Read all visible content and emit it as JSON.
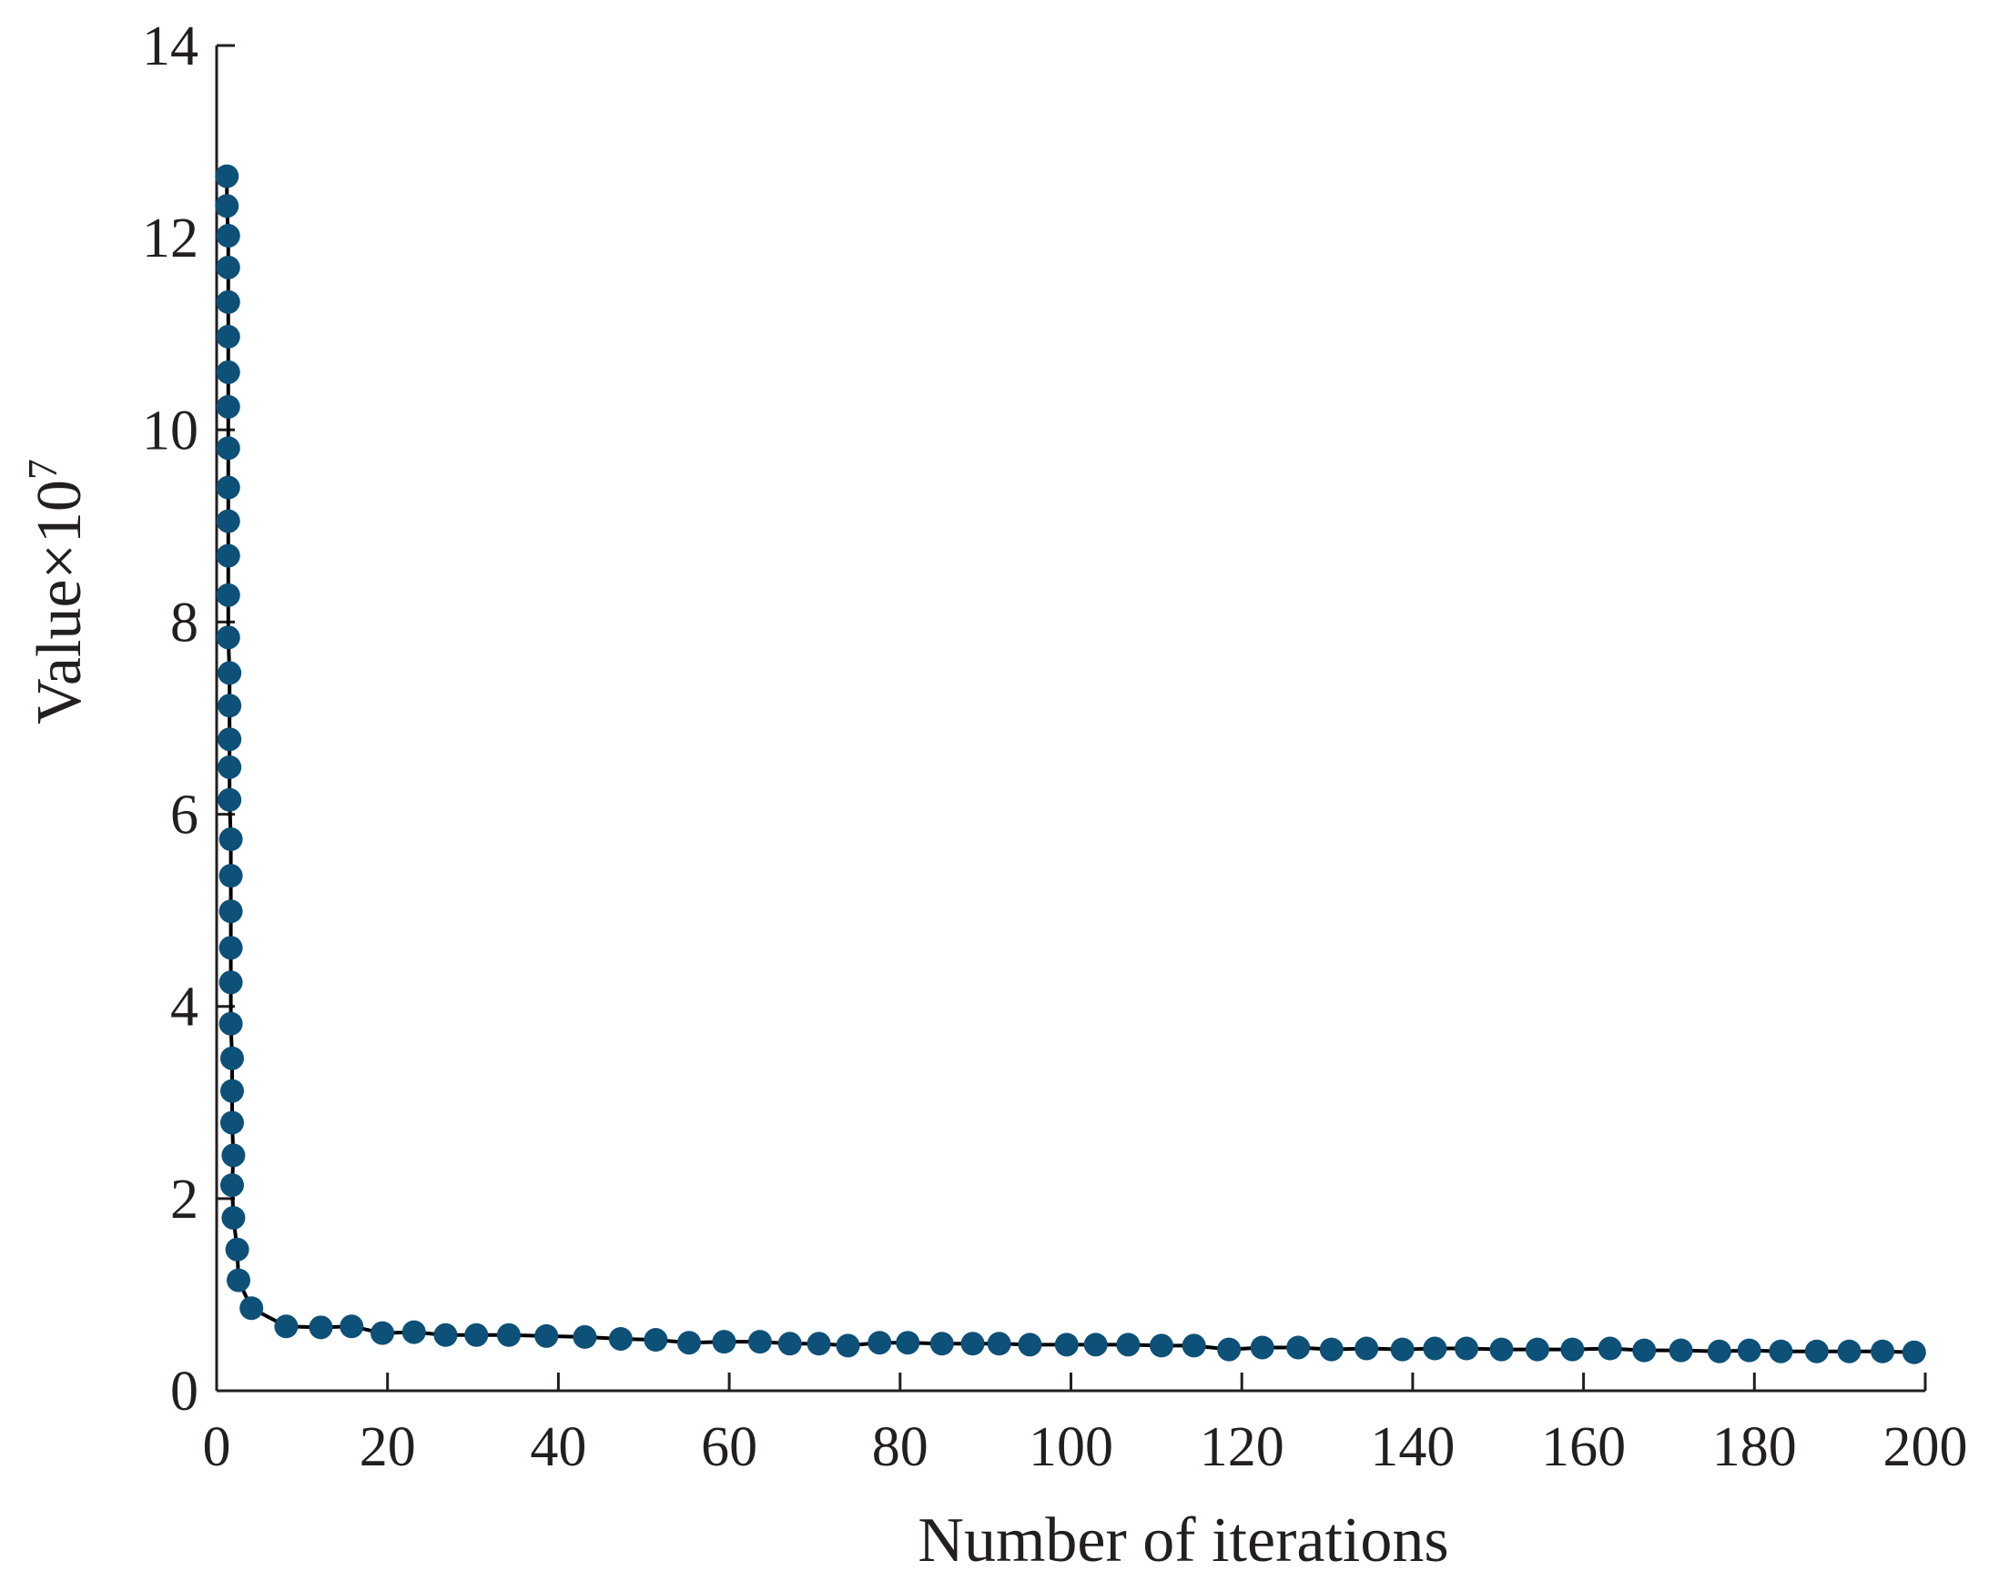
{
  "chart_data": {
    "type": "line",
    "xlabel": "Number of iterations",
    "ylabel": {
      "text": "Value×10",
      "superscript": "7"
    },
    "xlim": [
      0,
      200
    ],
    "xticks": [
      0,
      20,
      40,
      60,
      80,
      100,
      120,
      140,
      160,
      180,
      200
    ],
    "ylim": [
      0,
      14
    ],
    "yticks": [
      0,
      2,
      4,
      6,
      8,
      10,
      12,
      14
    ],
    "grid": false,
    "series": [
      {
        "name": "Value",
        "color": "#0d5078",
        "line_color": "#000000",
        "x": [
          1.2,
          1.2,
          1.36,
          1.36,
          1.36,
          1.36,
          1.36,
          1.36,
          1.36,
          1.36,
          1.36,
          1.36,
          1.36,
          1.36,
          1.51,
          1.51,
          1.51,
          1.51,
          1.51,
          1.66,
          1.66,
          1.66,
          1.66,
          1.66,
          1.66,
          1.81,
          1.81,
          1.81,
          1.96,
          1.81,
          1.96,
          2.41,
          2.56,
          4.07,
          8.14,
          12.2,
          15.8,
          19.4,
          23.1,
          26.8,
          30.4,
          34.2,
          38.6,
          43.1,
          47.3,
          51.4,
          55.3,
          59.4,
          63.6,
          67.1,
          70.5,
          73.9,
          77.6,
          80.9,
          84.9,
          88.5,
          91.6,
          95.2,
          99.5,
          102.9,
          106.7,
          110.6,
          114.4,
          118.5,
          122.4,
          126.6,
          130.5,
          134.6,
          138.8,
          142.6,
          146.3,
          150.4,
          154.6,
          158.7,
          163.1,
          167.1,
          171.4,
          175.9,
          179.4,
          183.1,
          187.3,
          191.1,
          195.0,
          198.7
        ],
        "values": [
          12.64,
          12.33,
          12.02,
          11.69,
          11.33,
          10.97,
          10.6,
          10.24,
          9.81,
          9.4,
          9.05,
          8.69,
          8.28,
          7.84,
          7.47,
          7.13,
          6.78,
          6.49,
          6.15,
          5.74,
          5.36,
          4.99,
          4.61,
          4.25,
          3.82,
          3.46,
          3.12,
          2.79,
          2.45,
          2.14,
          1.8,
          1.47,
          1.15,
          0.86,
          0.67,
          0.66,
          0.67,
          0.6,
          0.61,
          0.58,
          0.58,
          0.58,
          0.57,
          0.56,
          0.54,
          0.53,
          0.5,
          0.51,
          0.51,
          0.49,
          0.49,
          0.47,
          0.5,
          0.5,
          0.49,
          0.49,
          0.49,
          0.48,
          0.48,
          0.48,
          0.48,
          0.47,
          0.47,
          0.43,
          0.45,
          0.45,
          0.43,
          0.44,
          0.43,
          0.44,
          0.44,
          0.43,
          0.43,
          0.43,
          0.44,
          0.42,
          0.42,
          0.41,
          0.42,
          0.41,
          0.41,
          0.41,
          0.41,
          0.4
        ]
      }
    ]
  }
}
